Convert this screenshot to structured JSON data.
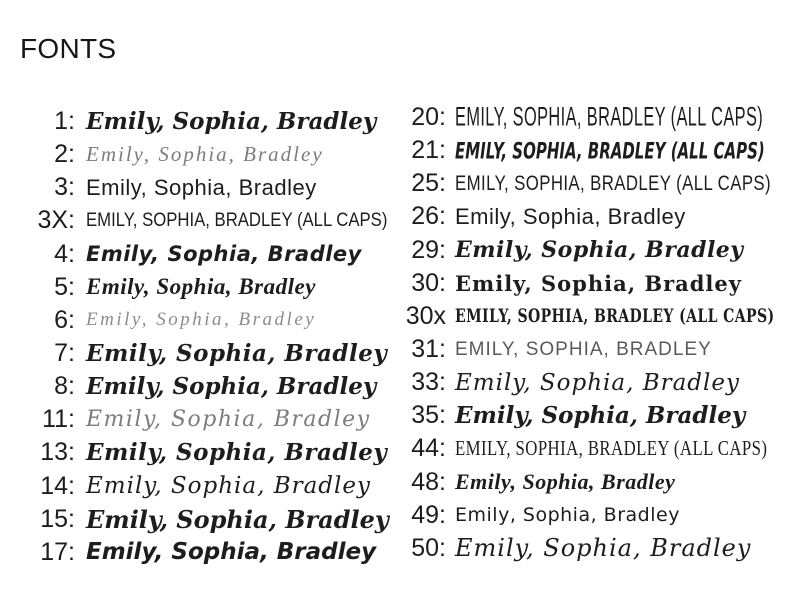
{
  "title": "FONTS",
  "colors": {
    "background": "#ffffff",
    "ink": "#1d1d1d",
    "script_muted": "#7d7d7d",
    "caps_muted": "#5a5a5a"
  },
  "samples": {
    "left": [
      {
        "id": "1",
        "label": "1:",
        "text": "Emily, Sophia, Bradley"
      },
      {
        "id": "2",
        "label": "2:",
        "text": "Emily, Sophia, Bradley"
      },
      {
        "id": "3",
        "label": "3:",
        "text": "Emily, Sophia, Bradley"
      },
      {
        "id": "3X",
        "label": "3X:",
        "text": "EMILY, SOPHIA, BRADLEY (ALL CAPS)"
      },
      {
        "id": "4",
        "label": "4:",
        "text": "Emily, Sophia, Bradley"
      },
      {
        "id": "5",
        "label": "5:",
        "text": "Emily, Sophia, Bradley"
      },
      {
        "id": "6",
        "label": "6:",
        "text": "Emily, Sophia, Bradley"
      },
      {
        "id": "7",
        "label": "7:",
        "text": "Emily, Sophia, Bradley"
      },
      {
        "id": "8",
        "label": "8:",
        "text": "Emily, Sophia, Bradley"
      },
      {
        "id": "11",
        "label": "11:",
        "text": "Emily, Sophia, Bradley"
      },
      {
        "id": "13",
        "label": "13:",
        "text": "Emily, Sophia, Bradley"
      },
      {
        "id": "14",
        "label": "14:",
        "text": "Emily, Sophia, Bradley"
      },
      {
        "id": "15",
        "label": "15:",
        "text": "Emily, Sophia, Bradley"
      },
      {
        "id": "17",
        "label": "17:",
        "text": "Emily, Sophia, Bradley"
      }
    ],
    "right": [
      {
        "id": "20",
        "label": "20:",
        "text": "EMILY, SOPHIA, BRADLEY (ALL CAPS)"
      },
      {
        "id": "21",
        "label": "21:",
        "text": "EMILY, SOPHIA, BRADLEY (ALL CAPS)"
      },
      {
        "id": "25",
        "label": "25:",
        "text": "EMILY, SOPHIA, BRADLEY (ALL CAPS)"
      },
      {
        "id": "26",
        "label": "26:",
        "text": "Emily, Sophia, Bradley"
      },
      {
        "id": "29",
        "label": "29:",
        "text": "Emily, Sophia, Bradley"
      },
      {
        "id": "30",
        "label": "30:",
        "text": "Emily, Sophia, Bradley"
      },
      {
        "id": "30x",
        "label": "30x",
        "text": "EMILY, SOPHIA, BRADLEY (ALL CAPS)"
      },
      {
        "id": "31",
        "label": "31:",
        "text": "EMILY, SOPHIA, BRADLEY"
      },
      {
        "id": "33",
        "label": "33:",
        "text": "Emily, Sophia, Bradley"
      },
      {
        "id": "35",
        "label": "35:",
        "text": "Emily, Sophia, Bradley"
      },
      {
        "id": "44",
        "label": "44:",
        "text": "EMILY, SOPHIA, BRADLEY (ALL CAPS)"
      },
      {
        "id": "48",
        "label": "48:",
        "text": "Emily, Sophia, Bradley"
      },
      {
        "id": "49",
        "label": "49:",
        "text": "Emily, Sophia, Bradley"
      },
      {
        "id": "50",
        "label": "50:",
        "text": "Emily, Sophia, Bradley"
      }
    ]
  }
}
